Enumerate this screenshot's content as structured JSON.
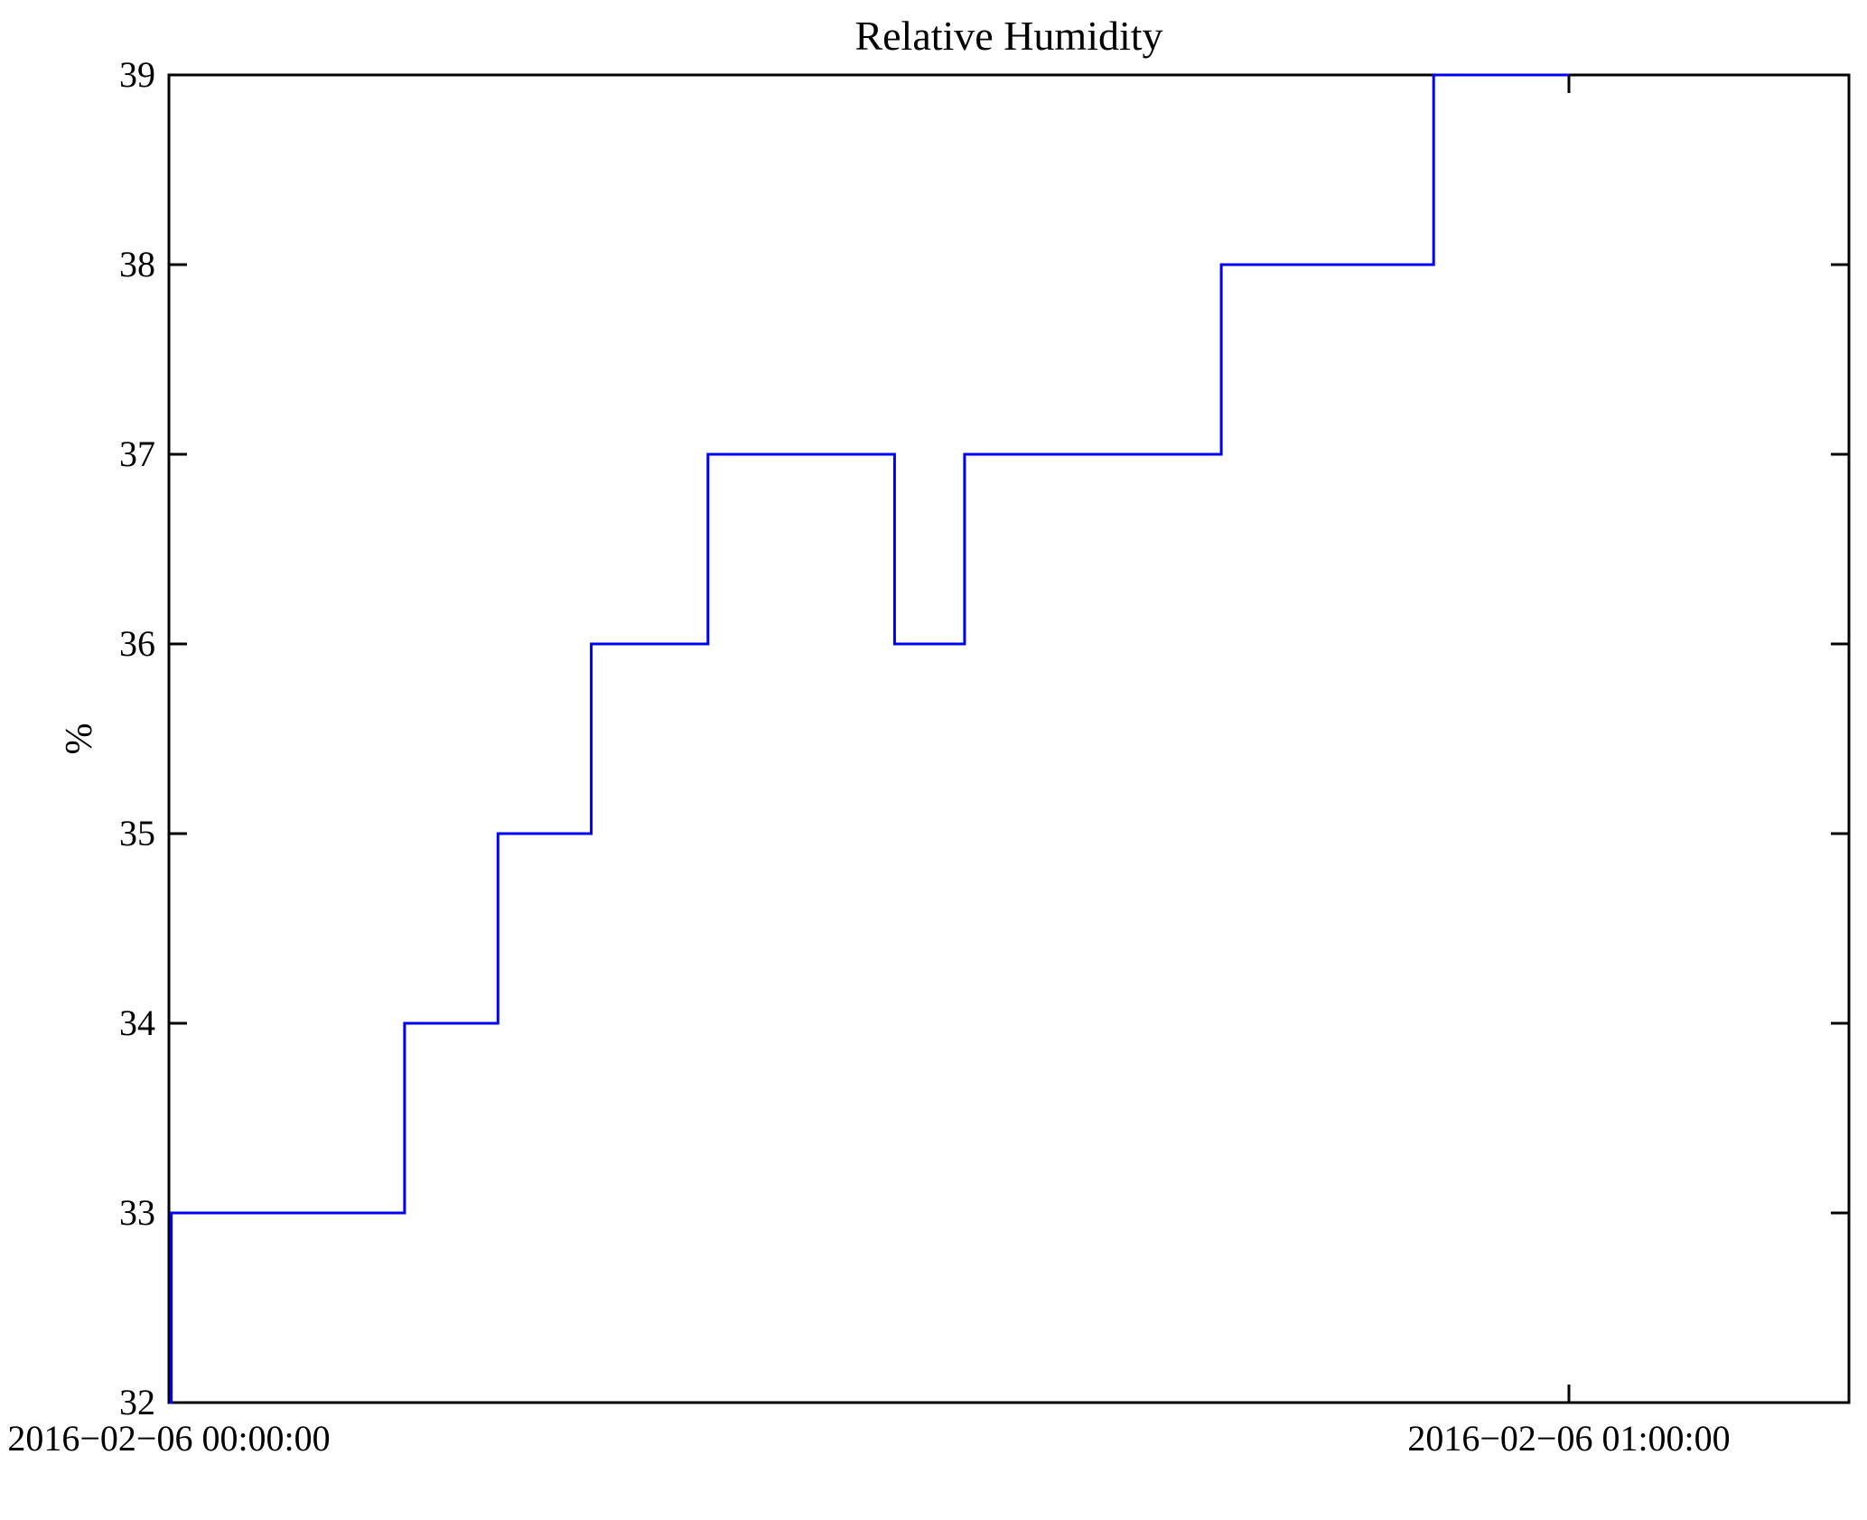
{
  "chart_data": {
    "type": "line",
    "line_style": "step-post",
    "title": "Relative Humidity",
    "xlabel": "",
    "ylabel": "%",
    "background_color": "#ffffff",
    "axis_color": "#000000",
    "line_color": "#0000f0",
    "grid": false,
    "legend": "none",
    "ylim": [
      32,
      39
    ],
    "y_ticks": [
      32,
      33,
      34,
      35,
      36,
      37,
      38,
      39
    ],
    "xlim_minutes": [
      0,
      72
    ],
    "x_ticks": [
      {
        "minute": 0,
        "label": "2016−02−06 00:00:00"
      },
      {
        "minute": 60,
        "label": "2016−02−06 01:00:00"
      }
    ],
    "series": [
      {
        "name": "Relative Humidity",
        "unit": "%",
        "points_minute_value": [
          [
            0.0,
            32
          ],
          [
            0.1,
            33
          ],
          [
            10.1,
            34
          ],
          [
            14.1,
            35
          ],
          [
            18.1,
            36
          ],
          [
            23.1,
            37
          ],
          [
            31.1,
            36
          ],
          [
            34.1,
            37
          ],
          [
            45.1,
            38
          ],
          [
            54.2,
            39
          ],
          [
            60.0,
            39
          ]
        ]
      }
    ]
  }
}
